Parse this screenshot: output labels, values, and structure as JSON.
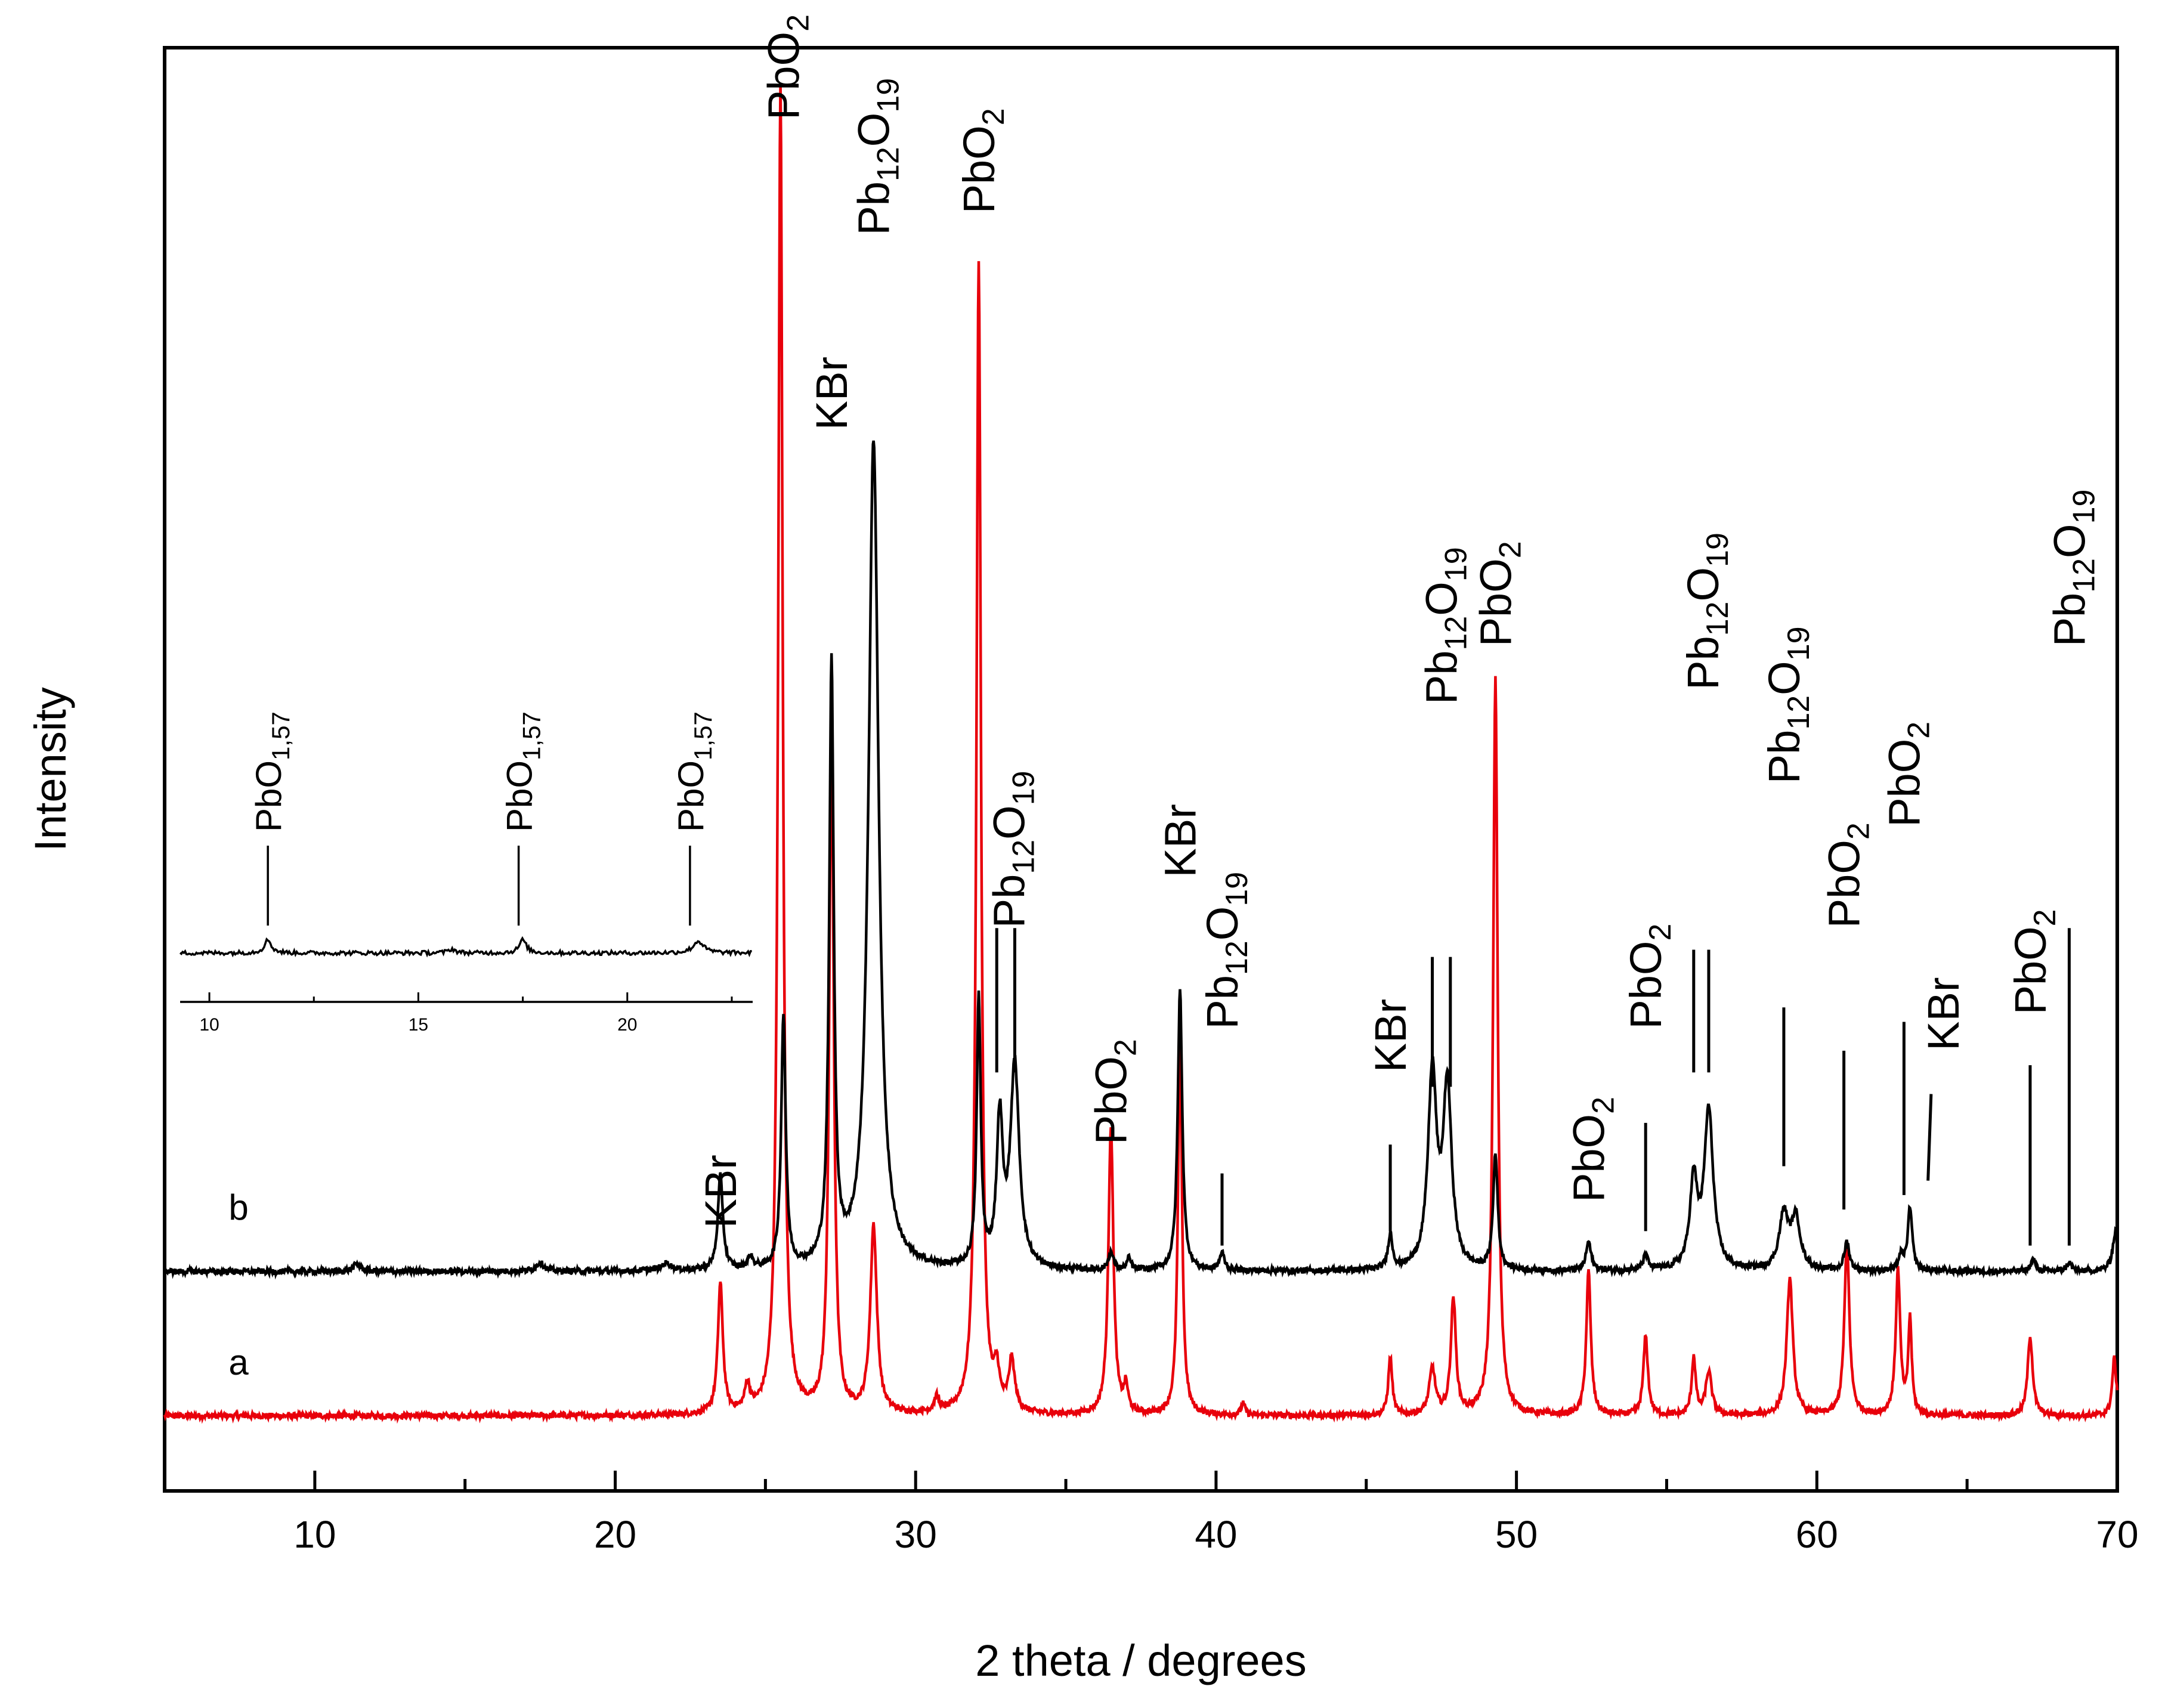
{
  "chart_data": {
    "type": "line",
    "title": "",
    "xlabel": "2 theta / degrees",
    "ylabel": "Intensity",
    "xlim": [
      5,
      70
    ],
    "ylim": [
      0,
      1000
    ],
    "xticks": [
      10,
      20,
      30,
      40,
      50,
      60,
      70
    ],
    "x_minor_step": 5,
    "yticks_visible": false,
    "colors": {
      "a": "#e8000b",
      "b": "#000000",
      "axis": "#000000"
    },
    "series": [
      {
        "name": "a",
        "label": "a",
        "color": "#e8000b",
        "baseline": 52,
        "peaks": [
          [
            23.5,
            90,
            0.1
          ],
          [
            24.4,
            18,
            0.1
          ],
          [
            25.5,
            920,
            0.09
          ],
          [
            27.2,
            480,
            0.09
          ],
          [
            28.6,
            130,
            0.13
          ],
          [
            30.7,
            10,
            0.1
          ],
          [
            32.1,
            800,
            0.09
          ],
          [
            32.7,
            25,
            0.1
          ],
          [
            33.2,
            35,
            0.12
          ],
          [
            36.5,
            200,
            0.1
          ],
          [
            37.0,
            18,
            0.08
          ],
          [
            38.8,
            265,
            0.08
          ],
          [
            40.9,
            8,
            0.08
          ],
          [
            45.8,
            40,
            0.08
          ],
          [
            47.2,
            32,
            0.12
          ],
          [
            47.9,
            80,
            0.1
          ],
          [
            49.3,
            510,
            0.09
          ],
          [
            52.4,
            100,
            0.09
          ],
          [
            54.3,
            55,
            0.09
          ],
          [
            55.9,
            40,
            0.08
          ],
          [
            56.4,
            30,
            0.12
          ],
          [
            59.1,
            95,
            0.12
          ],
          [
            61.0,
            120,
            0.1
          ],
          [
            62.7,
            100,
            0.09
          ],
          [
            63.1,
            65,
            0.07
          ],
          [
            67.1,
            55,
            0.1
          ],
          [
            69.9,
            40,
            0.08
          ]
        ]
      },
      {
        "name": "b",
        "label": "b",
        "color": "#000000",
        "baseline": 152,
        "peaks": [
          [
            11.4,
            5,
            0.15
          ],
          [
            17.5,
            6,
            0.15
          ],
          [
            21.7,
            5,
            0.2
          ],
          [
            23.5,
            65,
            0.1
          ],
          [
            24.5,
            8,
            0.1
          ],
          [
            25.6,
            175,
            0.09
          ],
          [
            27.2,
            415,
            0.09
          ],
          [
            28.6,
            575,
            0.2
          ],
          [
            32.1,
            185,
            0.08
          ],
          [
            32.8,
            100,
            0.12
          ],
          [
            33.3,
            140,
            0.18
          ],
          [
            36.5,
            12,
            0.1
          ],
          [
            37.1,
            8,
            0.08
          ],
          [
            38.8,
            195,
            0.09
          ],
          [
            40.2,
            12,
            0.1
          ],
          [
            45.8,
            24,
            0.09
          ],
          [
            47.2,
            135,
            0.17
          ],
          [
            47.7,
            125,
            0.17
          ],
          [
            49.3,
            80,
            0.09
          ],
          [
            52.4,
            20,
            0.1
          ],
          [
            54.3,
            10,
            0.1
          ],
          [
            55.9,
            60,
            0.15
          ],
          [
            56.4,
            110,
            0.18
          ],
          [
            58.9,
            38,
            0.18
          ],
          [
            59.3,
            35,
            0.18
          ],
          [
            61.0,
            20,
            0.1
          ],
          [
            62.8,
            10,
            0.1
          ],
          [
            63.1,
            43,
            0.09
          ],
          [
            67.2,
            8,
            0.1
          ],
          [
            68.4,
            6,
            0.1
          ],
          [
            69.95,
            28,
            0.12
          ]
        ]
      }
    ],
    "annotations": [
      {
        "main": "KBr",
        "sub": "",
        "x": 23.5,
        "y_top": 182
      },
      {
        "main": "PbO",
        "sub": "2",
        "x": 25.6,
        "y_top": 950
      },
      {
        "main": "KBr",
        "sub": "",
        "x": 27.2,
        "y_top": 735
      },
      {
        "main": "Pb",
        "sub": "12",
        "main2": "O",
        "sub2": "19",
        "x": 28.6,
        "y_top": 870
      },
      {
        "main": "PbO",
        "sub": "2",
        "x": 32.1,
        "y_top": 885
      },
      {
        "main": "Pb",
        "sub": "12",
        "main2": "O",
        "sub2": "19",
        "x": 33.1,
        "y_top": 390,
        "lines_x": [
          32.7,
          33.3
        ],
        "line_from": 390,
        "line_to": 290
      },
      {
        "main": "PbO",
        "sub": "2",
        "x": 36.5,
        "y_top": 240
      },
      {
        "main": "KBr",
        "sub": "",
        "x": 38.8,
        "y_top": 425
      },
      {
        "main": "Pb",
        "sub": "12",
        "main2": "O",
        "sub2": "19",
        "x": 40.2,
        "y_top": 320,
        "lines_x": [
          40.2
        ],
        "line_from": 220,
        "line_to": 170
      },
      {
        "main": "KBr",
        "sub": "",
        "x": 45.8,
        "y_top": 290,
        "lines_x": [
          45.8
        ],
        "line_from": 240,
        "line_to": 180
      },
      {
        "main": "Pb",
        "sub": "12",
        "main2": "O",
        "sub2": "19",
        "x": 47.5,
        "y_top": 545,
        "lines_x": [
          47.2,
          47.8
        ],
        "line_from": 370,
        "line_to": 280
      },
      {
        "main": "PbO",
        "sub": "2",
        "x": 49.3,
        "y_top": 585
      },
      {
        "main": "PbO",
        "sub": "2",
        "x": 52.4,
        "y_top": 200
      },
      {
        "main": "PbO",
        "sub": "2",
        "x": 54.3,
        "y_top": 320,
        "lines_x": [
          54.3
        ],
        "line_from": 255,
        "line_to": 180
      },
      {
        "main": "Pb",
        "sub": "12",
        "main2": "O",
        "sub2": "19",
        "x": 56.2,
        "y_top": 555,
        "lines_x": [
          55.9,
          56.4
        ],
        "line_from": 375,
        "line_to": 290
      },
      {
        "main": "Pb",
        "sub": "12",
        "main2": "O",
        "sub2": "19",
        "x": 58.9,
        "y_top": 490,
        "lines_x": [
          58.9
        ],
        "line_from": 335,
        "line_to": 225
      },
      {
        "main": "PbO",
        "sub": "2",
        "x": 60.9,
        "y_top": 390,
        "lines_x": [
          60.9
        ],
        "line_from": 305,
        "line_to": 195
      },
      {
        "main": "PbO",
        "sub": "2",
        "x": 62.9,
        "y_top": 460,
        "lines_x": [
          62.9
        ],
        "line_from": 325,
        "line_to": 205
      },
      {
        "main": "KBr",
        "sub": "",
        "x": 64.2,
        "y_top": 305,
        "lines_x": [
          63.5
        ],
        "line_from": 275,
        "line_to": 215,
        "slant_to_x": 63.7
      },
      {
        "main": "PbO",
        "sub": "2",
        "x": 67.1,
        "y_top": 330,
        "lines_x": [
          67.1
        ],
        "line_from": 295,
        "line_to": 170
      },
      {
        "main": "Pb",
        "sub": "12",
        "main2": "O",
        "sub2": "19",
        "x": 68.4,
        "y_top": 585,
        "lines_x": [
          68.4
        ],
        "line_from": 390,
        "line_to": 170
      }
    ],
    "inset": {
      "xlim": [
        9.3,
        23
      ],
      "xticks": [
        10,
        15,
        20
      ],
      "peaks": [
        [
          11.4,
          1.0,
          0.1
        ],
        [
          17.5,
          1.0,
          0.1
        ],
        [
          21.7,
          0.9,
          0.15
        ],
        [
          15.8,
          0.3,
          0.1
        ]
      ],
      "annotations": [
        {
          "main": "PbO",
          "sub": "1,57",
          "x": 11.4
        },
        {
          "main": "PbO",
          "sub": "1,57",
          "x": 17.4
        },
        {
          "main": "PbO",
          "sub": "1,57",
          "x": 21.5
        }
      ]
    }
  }
}
